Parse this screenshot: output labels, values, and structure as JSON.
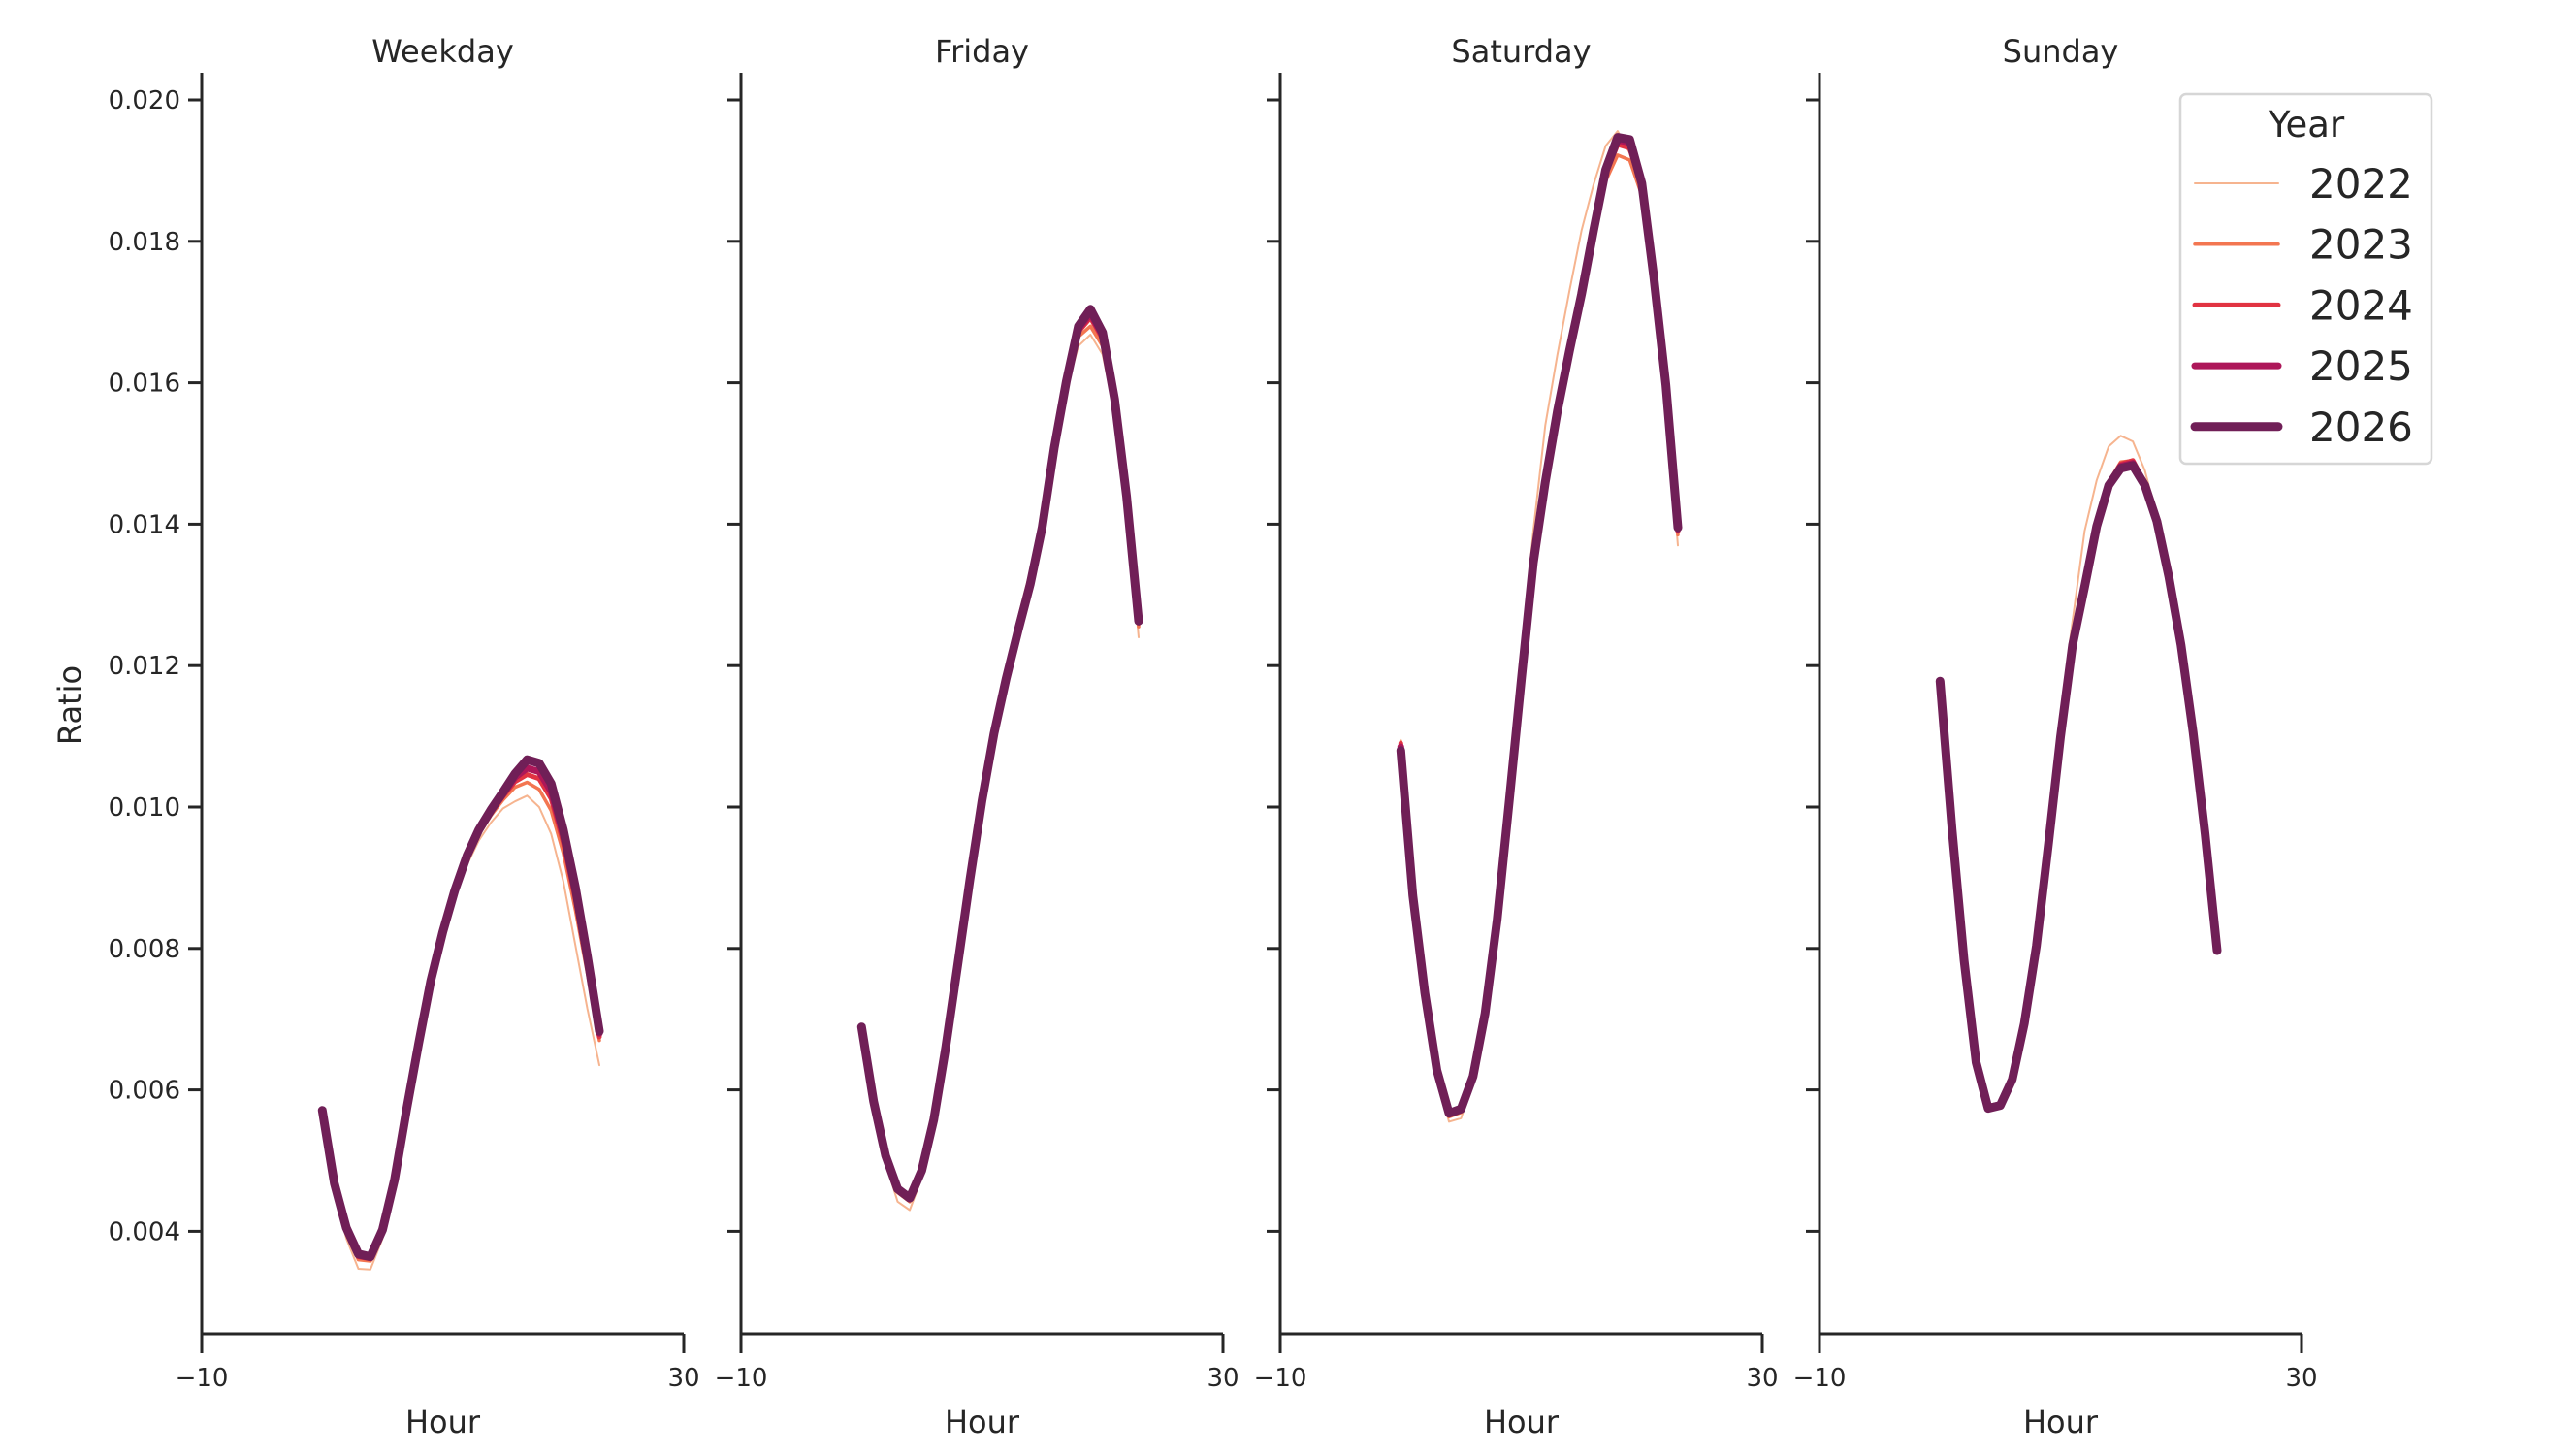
{
  "chart_data": {
    "type": "line",
    "layout": "facet-grid 1x4, shared y-axis",
    "ylabel": "Ratio",
    "xlabel": "Hour",
    "xlim": [
      -10,
      30
    ],
    "ylim": [
      0.0026,
      0.0204
    ],
    "x_ticks": [
      "−10",
      "30"
    ],
    "y_ticks": [
      "0.004",
      "0.006",
      "0.008",
      "0.010",
      "0.012",
      "0.014",
      "0.016",
      "0.018",
      "0.020"
    ],
    "y_tick_values": [
      0.004,
      0.006,
      0.008,
      0.01,
      0.012,
      0.014,
      0.016,
      0.018,
      0.02
    ],
    "grid": false,
    "x": [
      0,
      1,
      2,
      3,
      4,
      5,
      6,
      7,
      8,
      9,
      10,
      11,
      12,
      13,
      14,
      15,
      16,
      17,
      18,
      19,
      20,
      21,
      22,
      23
    ],
    "legend": {
      "title": "Year",
      "position": "upper right",
      "entries": [
        {
          "label": "2022",
          "color": "#f6b48f",
          "width": 2
        },
        {
          "label": "2023",
          "color": "#f37651",
          "width": 3.5
        },
        {
          "label": "2024",
          "color": "#e13342",
          "width": 5
        },
        {
          "label": "2025",
          "color": "#ad1759",
          "width": 7
        },
        {
          "label": "2026",
          "color": "#701f57",
          "width": 9
        }
      ]
    },
    "panels": [
      {
        "title": "Weekday",
        "series": [
          {
            "name": "2022",
            "values": [
              0.00571,
              0.00458,
              0.0039,
              0.00347,
              0.00346,
              0.0039,
              0.00465,
              0.0057,
              0.00663,
              0.0075,
              0.00818,
              0.00873,
              0.00918,
              0.00953,
              0.00978,
              0.00998,
              0.01008,
              0.01016,
              0.01,
              0.00962,
              0.00895,
              0.00805,
              0.00715,
              0.00635
            ]
          },
          {
            "name": "2023",
            "values": [
              0.00571,
              0.00464,
              0.00398,
              0.0036,
              0.00358,
              0.00398,
              0.0047,
              0.00571,
              0.00664,
              0.00752,
              0.00821,
              0.00878,
              0.00925,
              0.00961,
              0.00988,
              0.0101,
              0.01028,
              0.01035,
              0.01025,
              0.00995,
              0.00935,
              0.00855,
              0.00765,
              0.0067
            ]
          },
          {
            "name": "2024",
            "values": [
              0.00571,
              0.00466,
              0.00402,
              0.00364,
              0.00361,
              0.004,
              0.00472,
              0.00572,
              0.00665,
              0.00753,
              0.00822,
              0.0088,
              0.00928,
              0.00965,
              0.00992,
              0.01015,
              0.01036,
              0.01046,
              0.0104,
              0.01012,
              0.0095,
              0.0087,
              0.00775,
              0.00675
            ]
          },
          {
            "name": "2025",
            "values": [
              0.00571,
              0.00467,
              0.00404,
              0.00366,
              0.00363,
              0.00401,
              0.00473,
              0.00572,
              0.00665,
              0.00754,
              0.00823,
              0.00881,
              0.0093,
              0.00967,
              0.00994,
              0.01018,
              0.01042,
              0.01055,
              0.0105,
              0.01022,
              0.0096,
              0.0088,
              0.00782,
              0.0068
            ]
          },
          {
            "name": "2026",
            "values": [
              0.00571,
              0.00468,
              0.00405,
              0.00368,
              0.00364,
              0.00402,
              0.00473,
              0.00572,
              0.00665,
              0.00754,
              0.00823,
              0.00882,
              0.00931,
              0.00968,
              0.00996,
              0.01021,
              0.01047,
              0.01067,
              0.01062,
              0.01033,
              0.00968,
              0.00887,
              0.00789,
              0.00683
            ]
          }
        ]
      },
      {
        "title": "Friday",
        "series": [
          {
            "name": "2022",
            "values": [
              0.00689,
              0.00578,
              0.00497,
              0.00442,
              0.0043,
              0.00476,
              0.00552,
              0.0066,
              0.0078,
              0.00902,
              0.01015,
              0.01115,
              0.01195,
              0.01268,
              0.01335,
              0.0141,
              0.01505,
              0.0159,
              0.01652,
              0.01668,
              0.0164,
              0.0156,
              0.01425,
              0.0124
            ]
          },
          {
            "name": "2023",
            "values": [
              0.00689,
              0.00582,
              0.00503,
              0.00455,
              0.00442,
              0.00483,
              0.00556,
              0.00661,
              0.00779,
              0.009,
              0.01012,
              0.01108,
              0.01186,
              0.01256,
              0.01322,
              0.01401,
              0.01508,
              0.01598,
              0.01665,
              0.0168,
              0.01652,
              0.01568,
              0.01432,
              0.01255
            ]
          },
          {
            "name": "2024",
            "values": [
              0.00689,
              0.00583,
              0.00505,
              0.00458,
              0.00445,
              0.00485,
              0.00557,
              0.00661,
              0.00778,
              0.00899,
              0.0101,
              0.01106,
              0.01183,
              0.01252,
              0.01318,
              0.01398,
              0.01508,
              0.016,
              0.01672,
              0.01692,
              0.01662,
              0.01572,
              0.01436,
              0.0126
            ]
          },
          {
            "name": "2025",
            "values": [
              0.00689,
              0.00584,
              0.00506,
              0.00459,
              0.00446,
              0.00486,
              0.00558,
              0.00661,
              0.00778,
              0.00898,
              0.01009,
              0.01105,
              0.01182,
              0.01251,
              0.01316,
              0.01397,
              0.01508,
              0.01601,
              0.01676,
              0.01698,
              0.01667,
              0.01575,
              0.01438,
              0.01262
            ]
          },
          {
            "name": "2026",
            "values": [
              0.00689,
              0.00584,
              0.00507,
              0.0046,
              0.00447,
              0.00486,
              0.00558,
              0.00661,
              0.00778,
              0.00898,
              0.01009,
              0.01104,
              0.01181,
              0.0125,
              0.01315,
              0.01396,
              0.01508,
              0.01602,
              0.0168,
              0.01704,
              0.01671,
              0.01577,
              0.01439,
              0.01263
            ]
          }
        ]
      },
      {
        "title": "Saturday",
        "series": [
          {
            "name": "2022",
            "values": [
              0.01095,
              0.0088,
              0.00735,
              0.0062,
              0.00555,
              0.0056,
              0.0061,
              0.00705,
              0.0085,
              0.0103,
              0.0121,
              0.0139,
              0.0154,
              0.0164,
              0.0173,
              0.01815,
              0.0188,
              0.01935,
              0.01956,
              0.01925,
              0.0186,
              0.0173,
              0.01575,
              0.0137
            ]
          },
          {
            "name": "2023",
            "values": [
              0.01092,
              0.00878,
              0.00737,
              0.00625,
              0.00562,
              0.00568,
              0.00616,
              0.00707,
              0.00843,
              0.01012,
              0.01185,
              0.01352,
              0.0147,
              0.0156,
              0.01645,
              0.0173,
              0.01815,
              0.01885,
              0.01922,
              0.01915,
              0.01865,
              0.0174,
              0.0159,
              0.01385
            ]
          },
          {
            "name": "2024",
            "values": [
              0.0109,
              0.00877,
              0.00737,
              0.00627,
              0.00565,
              0.00571,
              0.00618,
              0.00708,
              0.00842,
              0.0101,
              0.01181,
              0.01348,
              0.01465,
              0.0156,
              0.01643,
              0.01728,
              0.01815,
              0.01895,
              0.01937,
              0.01932,
              0.01875,
              0.01745,
              0.01594,
              0.0139
            ]
          },
          {
            "name": "2025",
            "values": [
              0.01085,
              0.00876,
              0.00737,
              0.00628,
              0.00566,
              0.00572,
              0.00619,
              0.00708,
              0.00841,
              0.01009,
              0.0118,
              0.01346,
              0.01462,
              0.0156,
              0.01644,
              0.01727,
              0.01815,
              0.01899,
              0.01943,
              0.0194,
              0.0188,
              0.01748,
              0.01596,
              0.01393
            ]
          },
          {
            "name": "2026",
            "values": [
              0.0108,
              0.00875,
              0.00737,
              0.00628,
              0.00567,
              0.00573,
              0.00619,
              0.00708,
              0.00841,
              0.01008,
              0.01179,
              0.01345,
              0.0146,
              0.0156,
              0.01645,
              0.01725,
              0.01815,
              0.01901,
              0.01947,
              0.01944,
              0.01882,
              0.01749,
              0.01597,
              0.01395
            ]
          }
        ]
      },
      {
        "title": "Sunday",
        "series": [
          {
            "name": "2022",
            "values": [
              0.01178,
              0.00965,
              0.0078,
              0.00636,
              0.00575,
              0.0058,
              0.00622,
              0.0071,
              0.00835,
              0.00985,
              0.01133,
              0.01263,
              0.0139,
              0.01462,
              0.0151,
              0.01525,
              0.01517,
              0.01476,
              0.0141,
              0.01325,
              0.01225,
              0.011,
              0.00958,
              0.00795
            ]
          },
          {
            "name": "2023",
            "values": [
              0.01178,
              0.00967,
              0.00782,
              0.00638,
              0.00578,
              0.00581,
              0.00618,
              0.00697,
              0.00808,
              0.00952,
              0.01102,
              0.01232,
              0.01314,
              0.014,
              0.0146,
              0.01488,
              0.0149,
              0.0146,
              0.01406,
              0.01326,
              0.0123,
              0.01106,
              0.00962,
              0.00797
            ]
          },
          {
            "name": "2024",
            "values": [
              0.01178,
              0.00968,
              0.00783,
              0.00639,
              0.00577,
              0.0058,
              0.00617,
              0.00696,
              0.00806,
              0.0095,
              0.011,
              0.0123,
              0.01312,
              0.01398,
              0.01458,
              0.01485,
              0.0149,
              0.01458,
              0.01405,
              0.01325,
              0.01229,
              0.01106,
              0.00962,
              0.00797
            ]
          },
          {
            "name": "2025",
            "values": [
              0.01178,
              0.00968,
              0.00783,
              0.00639,
              0.00575,
              0.00579,
              0.00616,
              0.00695,
              0.00805,
              0.00949,
              0.01099,
              0.01229,
              0.01311,
              0.01397,
              0.01456,
              0.01482,
              0.01486,
              0.01456,
              0.01404,
              0.01325,
              0.01229,
              0.01106,
              0.00962,
              0.00797
            ]
          },
          {
            "name": "2026",
            "values": [
              0.01178,
              0.00968,
              0.00783,
              0.00639,
              0.00574,
              0.00578,
              0.00615,
              0.00694,
              0.00804,
              0.00948,
              0.01099,
              0.01229,
              0.01311,
              0.01397,
              0.01455,
              0.01479,
              0.01483,
              0.01455,
              0.01404,
              0.01325,
              0.01229,
              0.01106,
              0.00962,
              0.00797
            ]
          }
        ]
      }
    ]
  }
}
